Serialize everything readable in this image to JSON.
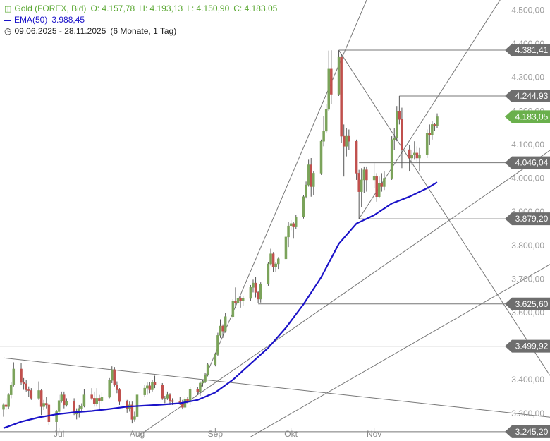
{
  "header": {
    "instrument": "Gold (FOREX, Bid)",
    "open": "O: 4.157,78",
    "high": "H: 4.193,13",
    "low": "L: 4.150,90",
    "close": "C: 4.183,05",
    "ema_label": "EMA(50)",
    "ema_value": "3.988,45",
    "range": "09.06.2025 - 28.11.2025",
    "period": "(6 Monate, 1 Tag)"
  },
  "colors": {
    "up": "#7ba35a",
    "down": "#c0504d",
    "ema": "#1a12c8",
    "line": "#777777",
    "tag": "#6e6e6e",
    "last": "#6ab04c"
  },
  "chart_data": {
    "type": "candlestick",
    "ylim": [
      3245,
      4520
    ],
    "y_ticks": [
      {
        "v": 4500,
        "label": "4.500,00"
      },
      {
        "v": 4400,
        "label": "4.400,00"
      },
      {
        "v": 4300,
        "label": "4.300,00"
      },
      {
        "v": 4200,
        "label": "4.200,00"
      },
      {
        "v": 4100,
        "label": "4.100,00"
      },
      {
        "v": 4000,
        "label": "4.000,00"
      },
      {
        "v": 3900,
        "label": "3.900,00"
      },
      {
        "v": 3800,
        "label": "3.800,00"
      },
      {
        "v": 3700,
        "label": "3.700,00"
      },
      {
        "v": 3600,
        "label": "3.600,00"
      },
      {
        "v": 3400,
        "label": "3.400,00"
      },
      {
        "v": 3300,
        "label": "3.300,00"
      }
    ],
    "x_ticks": [
      {
        "label": "Jul",
        "date": "2025-07-01"
      },
      {
        "label": "Aug",
        "date": "2025-08-01"
      },
      {
        "label": "Sep",
        "date": "2025-09-01"
      },
      {
        "label": "Okt",
        "date": "2025-10-01"
      },
      {
        "label": "Nov",
        "date": "2025-11-03"
      }
    ],
    "x_range": [
      "2025-06-09",
      "2025-11-28"
    ],
    "levels": [
      {
        "v": 4381.41,
        "label": "4.381,41",
        "from": "2025-10-20"
      },
      {
        "v": 4244.93,
        "label": "4.244,93",
        "from": "2025-11-13"
      },
      {
        "v": 4046.04,
        "label": "4.046,04",
        "from": "2025-10-28"
      },
      {
        "v": 3879.2,
        "label": "3.879,20",
        "from": "2025-10-28"
      },
      {
        "v": 3625.6,
        "label": "3.625,60",
        "from": "2025-09-18"
      },
      {
        "v": 3499.92,
        "label": "3.499,92",
        "from": "2025-06-09"
      },
      {
        "v": 3245.2,
        "label": "3.245,20",
        "from": "2025-06-09"
      }
    ],
    "last_price": {
      "v": 4183.05,
      "label": "4.183,05"
    },
    "trendlines": [
      {
        "p1": [
          "2025-08-25",
          3355
        ],
        "p2": [
          "2025-10-31",
          4530
        ]
      },
      {
        "p1": [
          "2025-10-20",
          4381
        ],
        "p2": [
          "2025-11-28",
          3930
        ]
      },
      {
        "p1": [
          "2025-10-28",
          3879
        ],
        "p2": [
          "2025-11-28",
          4240
        ]
      },
      {
        "p1": [
          "2025-06-09",
          3465
        ],
        "p2": [
          "2025-11-28",
          3325
        ]
      },
      {
        "p1": [
          "2025-08-01",
          3230
        ],
        "p2": [
          "2025-11-28",
          3850
        ]
      },
      {
        "p1": [
          "2025-09-15",
          3230
        ],
        "p2": [
          "2025-11-28",
          3550
        ]
      }
    ],
    "ohlc": [
      [
        "2025-06-09",
        3312,
        3330,
        3290,
        3325
      ],
      [
        "2025-06-10",
        3325,
        3345,
        3310,
        3320
      ],
      [
        "2025-06-11",
        3320,
        3360,
        3312,
        3355
      ],
      [
        "2025-06-12",
        3355,
        3392,
        3345,
        3385
      ],
      [
        "2025-06-13",
        3385,
        3452,
        3380,
        3432
      ],
      [
        "2025-06-16",
        3432,
        3450,
        3385,
        3392
      ],
      [
        "2025-06-17",
        3392,
        3405,
        3370,
        3388
      ],
      [
        "2025-06-18",
        3388,
        3400,
        3365,
        3370
      ],
      [
        "2025-06-19",
        3370,
        3380,
        3350,
        3368
      ],
      [
        "2025-06-20",
        3368,
        3375,
        3340,
        3345
      ],
      [
        "2025-06-23",
        3345,
        3395,
        3340,
        3368
      ],
      [
        "2025-06-24",
        3368,
        3372,
        3295,
        3320
      ],
      [
        "2025-06-25",
        3320,
        3340,
        3310,
        3330
      ],
      [
        "2025-06-26",
        3330,
        3350,
        3315,
        3325
      ],
      [
        "2025-06-27",
        3325,
        3330,
        3265,
        3275
      ],
      [
        "2025-06-30",
        3275,
        3310,
        3248,
        3305
      ],
      [
        "2025-07-01",
        3305,
        3355,
        3300,
        3338
      ],
      [
        "2025-07-02",
        3338,
        3365,
        3332,
        3355
      ],
      [
        "2025-07-03",
        3355,
        3365,
        3315,
        3325
      ],
      [
        "2025-07-04",
        3325,
        3345,
        3320,
        3335
      ],
      [
        "2025-07-07",
        3335,
        3345,
        3295,
        3300
      ],
      [
        "2025-07-08",
        3300,
        3315,
        3282,
        3300
      ],
      [
        "2025-07-09",
        3300,
        3325,
        3288,
        3315
      ],
      [
        "2025-07-10",
        3315,
        3330,
        3308,
        3322
      ],
      [
        "2025-07-11",
        3322,
        3372,
        3318,
        3355
      ],
      [
        "2025-07-14",
        3355,
        3375,
        3340,
        3345
      ],
      [
        "2025-07-15",
        3345,
        3365,
        3320,
        3328
      ],
      [
        "2025-07-16",
        3328,
        3375,
        3320,
        3345
      ],
      [
        "2025-07-17",
        3345,
        3355,
        3310,
        3338
      ],
      [
        "2025-07-18",
        3338,
        3362,
        3330,
        3348
      ],
      [
        "2025-07-21",
        3348,
        3405,
        3345,
        3398
      ],
      [
        "2025-07-22",
        3398,
        3440,
        3390,
        3430
      ],
      [
        "2025-07-23",
        3430,
        3438,
        3380,
        3385
      ],
      [
        "2025-07-24",
        3385,
        3395,
        3360,
        3370
      ],
      [
        "2025-07-25",
        3370,
        3375,
        3325,
        3335
      ],
      [
        "2025-07-28",
        3335,
        3340,
        3302,
        3315
      ],
      [
        "2025-07-29",
        3315,
        3335,
        3305,
        3325
      ],
      [
        "2025-07-30",
        3325,
        3335,
        3270,
        3282
      ],
      [
        "2025-07-31",
        3282,
        3305,
        3275,
        3290
      ],
      [
        "2025-08-01",
        3290,
        3362,
        3282,
        3355
      ],
      [
        "2025-08-04",
        3355,
        3385,
        3350,
        3375
      ],
      [
        "2025-08-05",
        3375,
        3392,
        3355,
        3382
      ],
      [
        "2025-08-06",
        3382,
        3392,
        3360,
        3370
      ],
      [
        "2025-08-07",
        3370,
        3400,
        3365,
        3392
      ],
      [
        "2025-08-08",
        3392,
        3412,
        3375,
        3385
      ],
      [
        "2025-08-11",
        3385,
        3390,
        3340,
        3345
      ],
      [
        "2025-08-12",
        3345,
        3352,
        3330,
        3345
      ],
      [
        "2025-08-13",
        3345,
        3365,
        3340,
        3355
      ],
      [
        "2025-08-14",
        3355,
        3360,
        3325,
        3338
      ],
      [
        "2025-08-15",
        3338,
        3345,
        3325,
        3335
      ],
      [
        "2025-08-18",
        3335,
        3350,
        3325,
        3332
      ],
      [
        "2025-08-19",
        3332,
        3340,
        3312,
        3318
      ],
      [
        "2025-08-20",
        3318,
        3348,
        3312,
        3342
      ],
      [
        "2025-08-21",
        3342,
        3350,
        3330,
        3338
      ],
      [
        "2025-08-22",
        3338,
        3378,
        3325,
        3372
      ],
      [
        "2025-08-25",
        3372,
        3378,
        3355,
        3365
      ],
      [
        "2025-08-26",
        3365,
        3395,
        3352,
        3390
      ],
      [
        "2025-08-27",
        3390,
        3400,
        3380,
        3395
      ],
      [
        "2025-08-28",
        3395,
        3420,
        3390,
        3415
      ],
      [
        "2025-08-29",
        3415,
        3450,
        3410,
        3445
      ],
      [
        "2025-09-01",
        3445,
        3480,
        3440,
        3475
      ],
      [
        "2025-09-02",
        3475,
        3540,
        3470,
        3532
      ],
      [
        "2025-09-03",
        3532,
        3580,
        3525,
        3560
      ],
      [
        "2025-09-04",
        3560,
        3565,
        3525,
        3545
      ],
      [
        "2025-09-05",
        3545,
        3600,
        3540,
        3588
      ],
      [
        "2025-09-08",
        3588,
        3640,
        3582,
        3635
      ],
      [
        "2025-09-09",
        3635,
        3675,
        3615,
        3628
      ],
      [
        "2025-09-10",
        3628,
        3658,
        3620,
        3642
      ],
      [
        "2025-09-11",
        3642,
        3650,
        3615,
        3635
      ],
      [
        "2025-09-12",
        3635,
        3650,
        3620,
        3642
      ],
      [
        "2025-09-15",
        3642,
        3682,
        3635,
        3675
      ],
      [
        "2025-09-16",
        3675,
        3698,
        3660,
        3688
      ],
      [
        "2025-09-17",
        3688,
        3705,
        3645,
        3660
      ],
      [
        "2025-09-18",
        3660,
        3665,
        3628,
        3640
      ],
      [
        "2025-09-19",
        3640,
        3690,
        3630,
        3685
      ],
      [
        "2025-09-22",
        3685,
        3750,
        3680,
        3745
      ],
      [
        "2025-09-23",
        3745,
        3790,
        3740,
        3775
      ],
      [
        "2025-09-24",
        3775,
        3780,
        3720,
        3735
      ],
      [
        "2025-09-25",
        3735,
        3750,
        3720,
        3745
      ],
      [
        "2025-09-26",
        3745,
        3765,
        3730,
        3760
      ],
      [
        "2025-09-29",
        3760,
        3830,
        3755,
        3825
      ],
      [
        "2025-09-30",
        3825,
        3870,
        3795,
        3858
      ],
      [
        "2025-10-01",
        3858,
        3875,
        3845,
        3865
      ],
      [
        "2025-10-02",
        3865,
        3870,
        3820,
        3855
      ],
      [
        "2025-10-03",
        3855,
        3890,
        3848,
        3885
      ],
      [
        "2025-10-06",
        3885,
        3950,
        3880,
        3945
      ],
      [
        "2025-10-07",
        3945,
        3990,
        3940,
        3980
      ],
      [
        "2025-10-08",
        3980,
        4055,
        3975,
        4040
      ],
      [
        "2025-10-09",
        4040,
        4060,
        3945,
        3975
      ],
      [
        "2025-10-10",
        3975,
        4020,
        3950,
        4015
      ],
      [
        "2025-10-13",
        4015,
        4115,
        4010,
        4110
      ],
      [
        "2025-10-14",
        4110,
        4185,
        4095,
        4140
      ],
      [
        "2025-10-15",
        4140,
        4220,
        4135,
        4205
      ],
      [
        "2025-10-16",
        4205,
        4380,
        4200,
        4325
      ],
      [
        "2025-10-17",
        4325,
        4381,
        4220,
        4250
      ],
      [
        "2025-10-20",
        4250,
        4381,
        4245,
        4360
      ],
      [
        "2025-10-21",
        4360,
        4370,
        4105,
        4125
      ],
      [
        "2025-10-22",
        4125,
        4160,
        4005,
        4095
      ],
      [
        "2025-10-23",
        4095,
        4150,
        4065,
        4125
      ],
      [
        "2025-10-24",
        4125,
        4145,
        4085,
        4110
      ],
      [
        "2025-10-27",
        4110,
        4115,
        3995,
        4015
      ],
      [
        "2025-10-28",
        4015,
        4025,
        3879,
        3960
      ],
      [
        "2025-10-29",
        3960,
        4030,
        3915,
        3995
      ],
      [
        "2025-10-30",
        3995,
        4035,
        3955,
        4025
      ],
      [
        "2025-10-31",
        4025,
        4035,
        3960,
        3995
      ],
      [
        "2025-11-03",
        3995,
        4045,
        3970,
        4005
      ],
      [
        "2025-11-04",
        4005,
        4015,
        3930,
        3945
      ],
      [
        "2025-11-05",
        3945,
        4005,
        3940,
        3985
      ],
      [
        "2025-11-06",
        3985,
        4015,
        3960,
        3975
      ],
      [
        "2025-11-07",
        3975,
        4020,
        3965,
        4000
      ],
      [
        "2025-11-10",
        4000,
        4125,
        3995,
        4115
      ],
      [
        "2025-11-11",
        4115,
        4150,
        4085,
        4120
      ],
      [
        "2025-11-12",
        4120,
        4215,
        4110,
        4200
      ],
      [
        "2025-11-13",
        4200,
        4245,
        4160,
        4175
      ],
      [
        "2025-11-14",
        4175,
        4210,
        4030,
        4085
      ],
      [
        "2025-11-17",
        4085,
        4100,
        4020,
        4060
      ],
      [
        "2025-11-18",
        4060,
        4085,
        4040,
        4070
      ],
      [
        "2025-11-19",
        4070,
        4110,
        4055,
        4075
      ],
      [
        "2025-11-20",
        4075,
        4095,
        4050,
        4060
      ],
      [
        "2025-11-21",
        4060,
        4090,
        4020,
        4070
      ],
      [
        "2025-11-24",
        4070,
        4145,
        4060,
        4135
      ],
      [
        "2025-11-25",
        4135,
        4160,
        4100,
        4128
      ],
      [
        "2025-11-26",
        4128,
        4170,
        4115,
        4160
      ],
      [
        "2025-11-27",
        4160,
        4165,
        4140,
        4157
      ],
      [
        "2025-11-28",
        4157,
        4193,
        4150,
        4183
      ]
    ],
    "ema": [
      [
        "2025-06-09",
        3256
      ],
      [
        "2025-06-16",
        3275
      ],
      [
        "2025-06-23",
        3288
      ],
      [
        "2025-06-30",
        3297
      ],
      [
        "2025-07-07",
        3303
      ],
      [
        "2025-07-14",
        3307
      ],
      [
        "2025-07-21",
        3313
      ],
      [
        "2025-07-28",
        3320
      ],
      [
        "2025-08-04",
        3323
      ],
      [
        "2025-08-11",
        3326
      ],
      [
        "2025-08-18",
        3330
      ],
      [
        "2025-08-25",
        3340
      ],
      [
        "2025-09-01",
        3362
      ],
      [
        "2025-09-08",
        3400
      ],
      [
        "2025-09-15",
        3448
      ],
      [
        "2025-09-22",
        3495
      ],
      [
        "2025-09-29",
        3555
      ],
      [
        "2025-10-06",
        3625
      ],
      [
        "2025-10-13",
        3705
      ],
      [
        "2025-10-20",
        3805
      ],
      [
        "2025-10-27",
        3865
      ],
      [
        "2025-11-03",
        3890
      ],
      [
        "2025-11-10",
        3925
      ],
      [
        "2025-11-17",
        3945
      ],
      [
        "2025-11-24",
        3970
      ],
      [
        "2025-11-28",
        3988
      ]
    ]
  }
}
